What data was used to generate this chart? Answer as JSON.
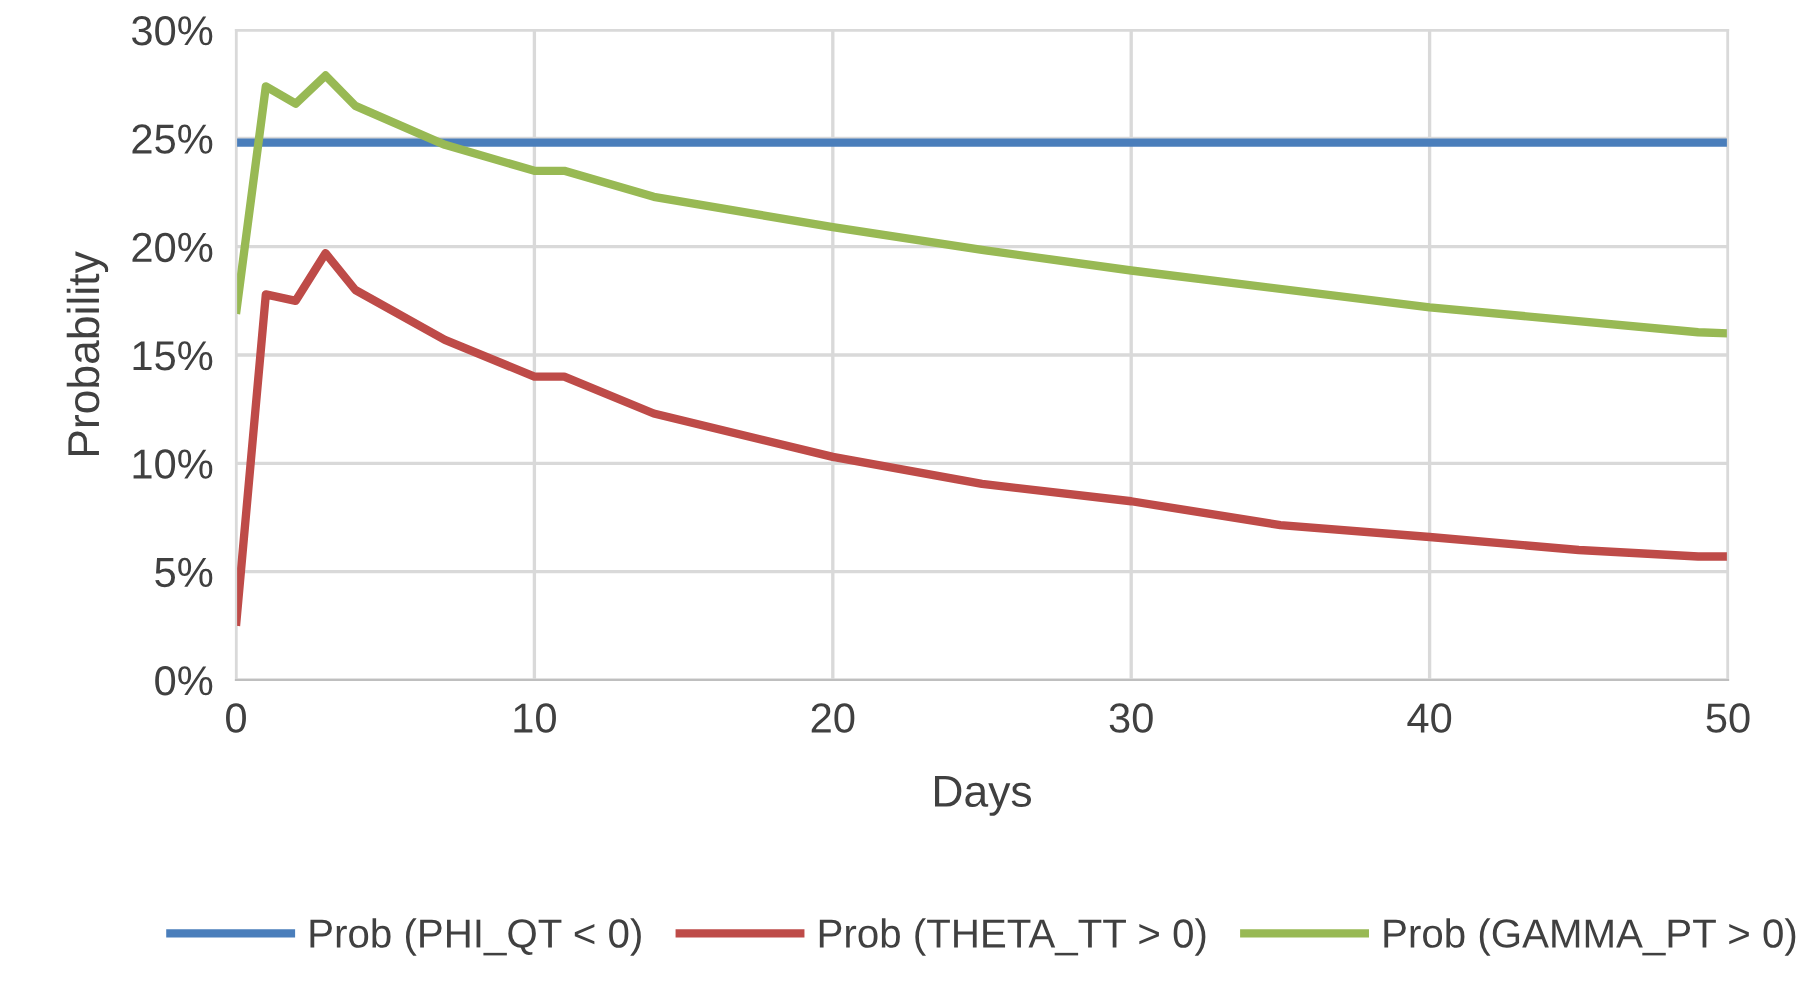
{
  "chart_data": {
    "type": "line",
    "xlabel": "Days",
    "ylabel": "Probability",
    "xlim": [
      0,
      50
    ],
    "xticks": [
      0,
      10,
      20,
      30,
      40,
      50
    ],
    "ylim": [
      0,
      30
    ],
    "yticks": [
      {
        "value": 0,
        "label": "0%"
      },
      {
        "value": 5,
        "label": "5%"
      },
      {
        "value": 10,
        "label": "10%"
      },
      {
        "value": 15,
        "label": "15%"
      },
      {
        "value": 20,
        "label": "20%"
      },
      {
        "value": 25,
        "label": "25%"
      },
      {
        "value": 30,
        "label": "30%"
      }
    ],
    "grid": true,
    "legend": "bottom",
    "marker": "none",
    "line_style": "solid",
    "series": [
      {
        "name": "Prob (PHI_QT < 0)",
        "color": "#4a7ebb",
        "x": [
          0,
          50
        ],
        "values": [
          24.8,
          24.8
        ]
      },
      {
        "name": "Prob (THETA_TT > 0)",
        "color": "#be4b48",
        "x": [
          0,
          1,
          2,
          3,
          4,
          7,
          10,
          11,
          14,
          20,
          25,
          30,
          35,
          40,
          45,
          49,
          50
        ],
        "values": [
          2.5,
          17.8,
          17.5,
          19.7,
          18.0,
          15.7,
          14.0,
          14.0,
          12.3,
          10.3,
          9.05,
          8.25,
          7.15,
          6.6,
          6.0,
          5.7,
          5.7
        ]
      },
      {
        "name": "Prob (GAMMA_PT > 0)",
        "color": "#98b954",
        "x": [
          0,
          1,
          2,
          3,
          4,
          7,
          10,
          11,
          14,
          20,
          25,
          30,
          40,
          49,
          50
        ],
        "values": [
          16.9,
          27.4,
          26.6,
          27.9,
          26.5,
          24.7,
          23.5,
          23.5,
          22.3,
          20.9,
          19.85,
          18.9,
          17.2,
          16.05,
          16.0
        ]
      }
    ]
  }
}
